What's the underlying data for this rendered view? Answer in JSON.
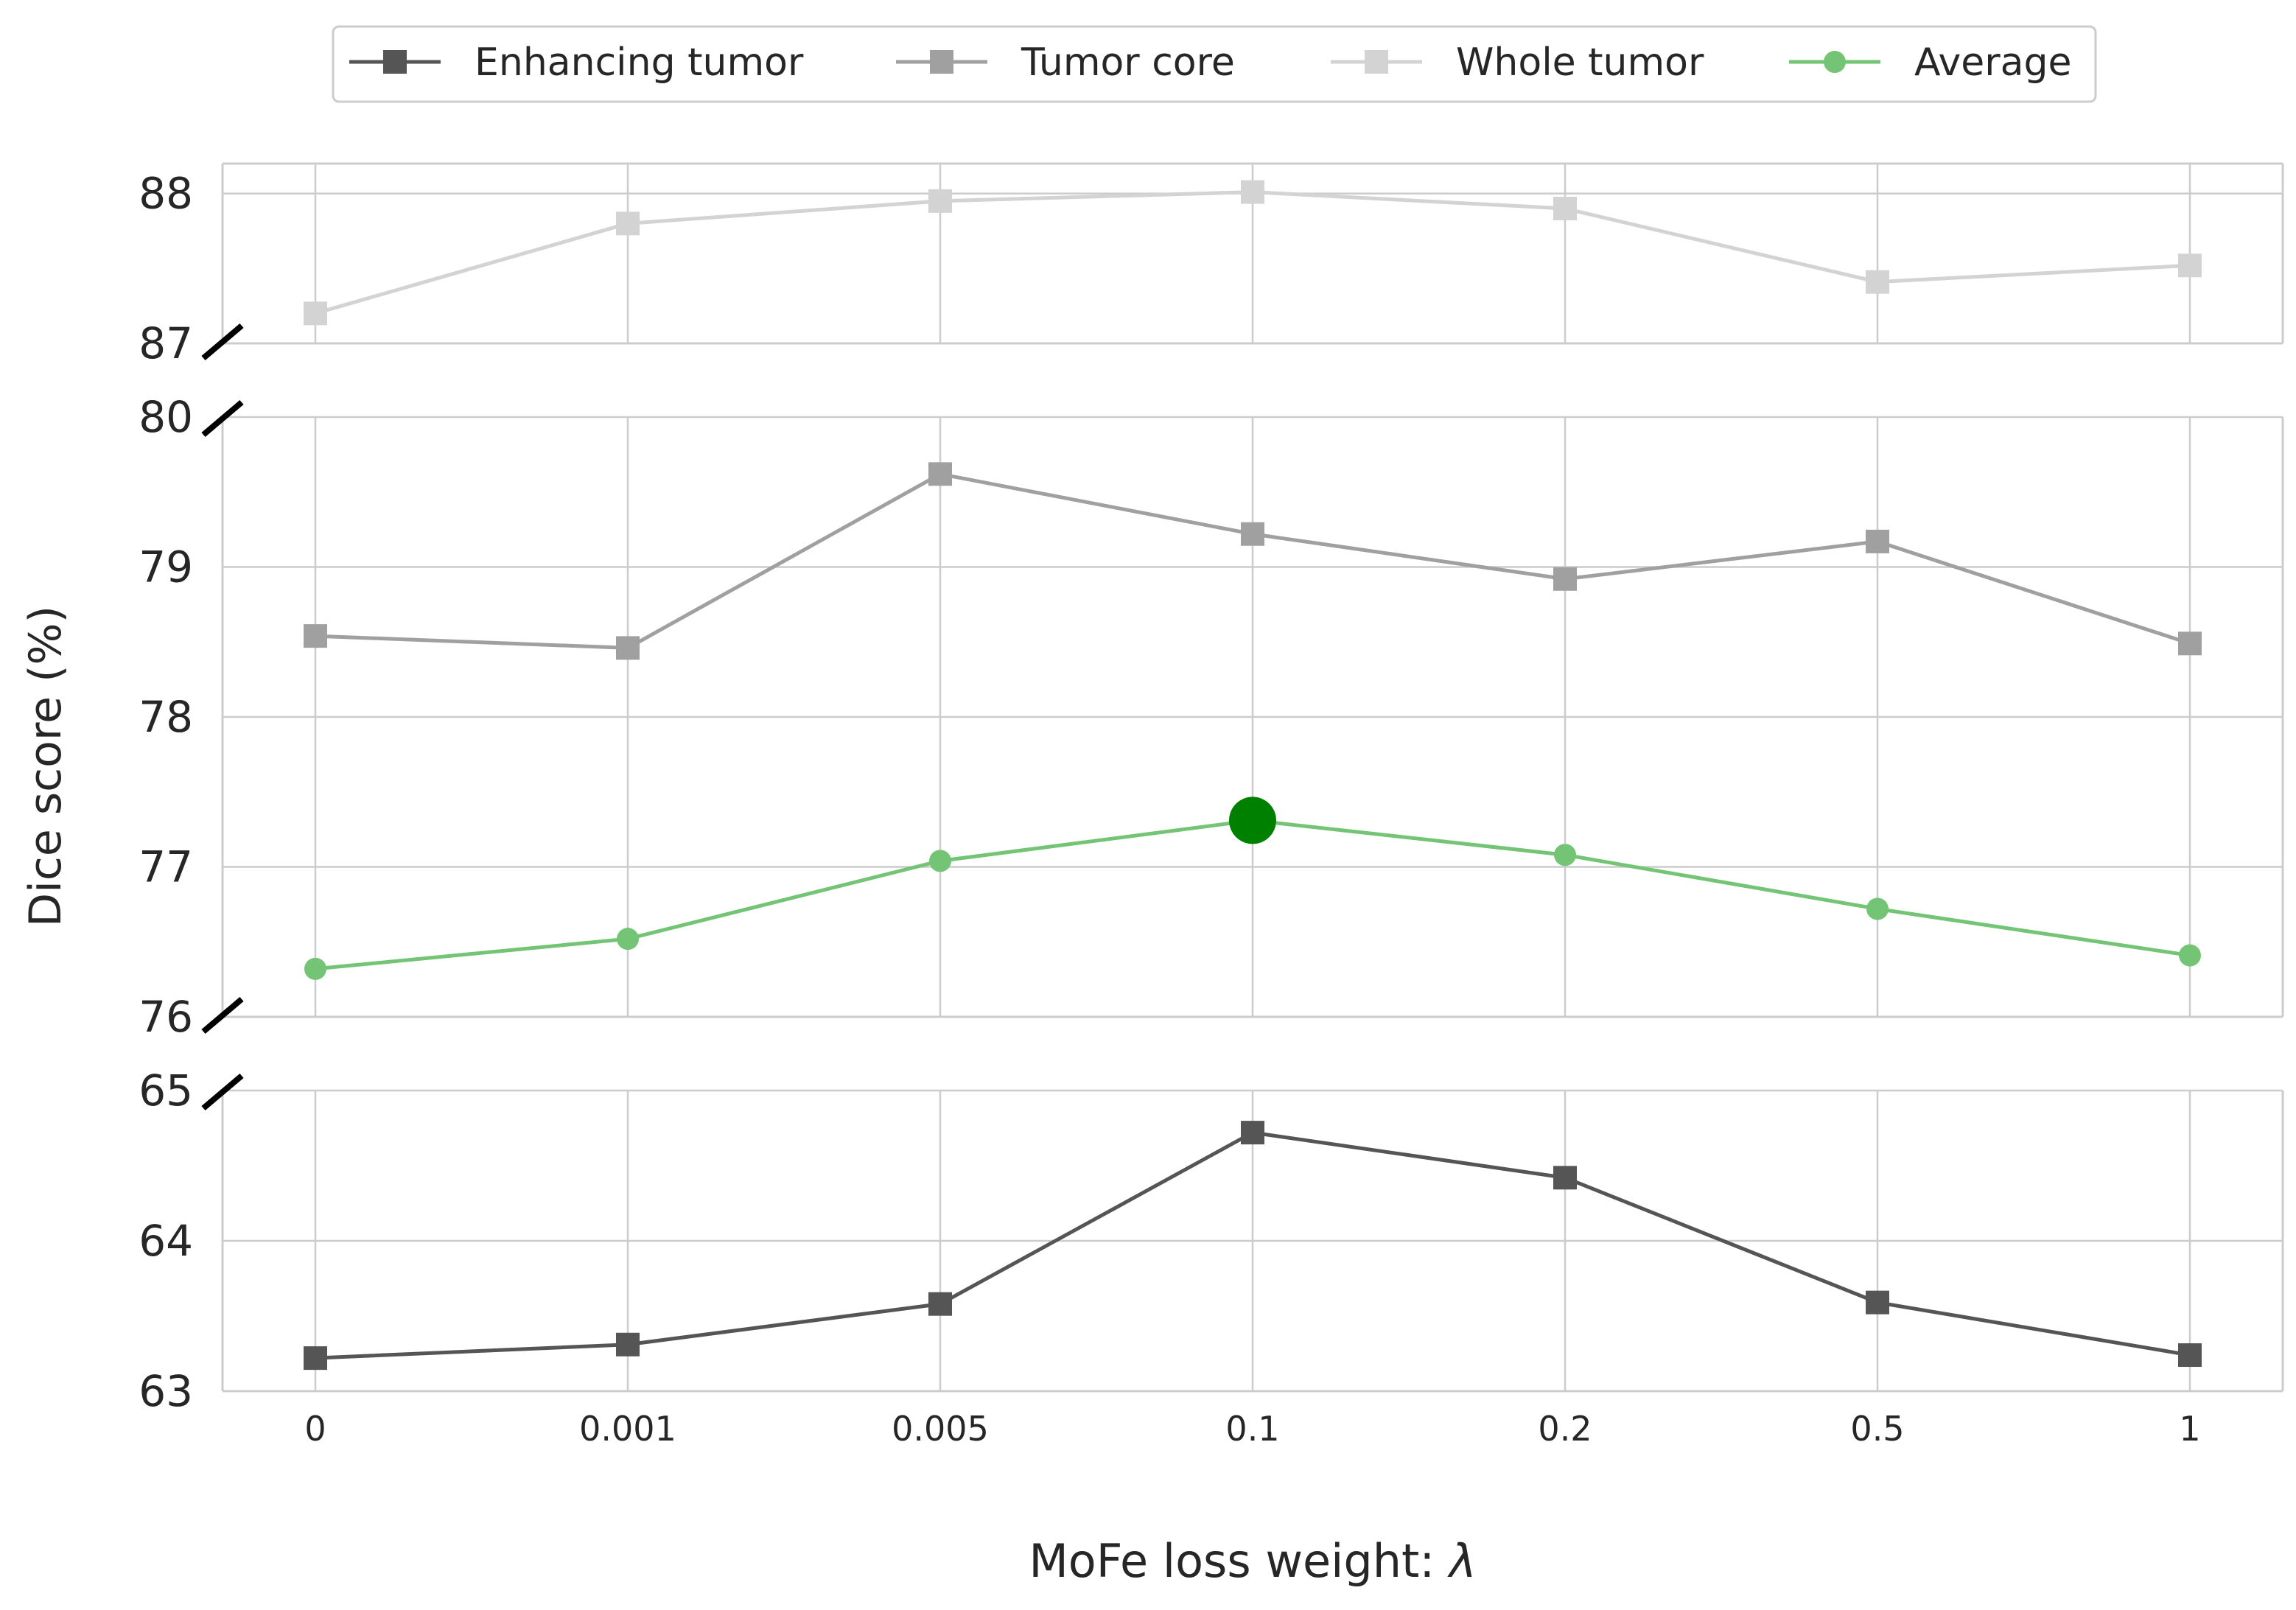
{
  "chart_data": {
    "type": "line",
    "ylabel": "Dice score (%)",
    "xlabel": "MoFe loss weight: ",
    "xlabel_symbol": "λ",
    "x_categories": [
      "0",
      "0.001",
      "0.005",
      "0.1",
      "0.2",
      "0.5",
      "1"
    ],
    "grid": true,
    "legend_placement": "top-center",
    "y_axis_break": true,
    "panels": [
      {
        "id": "top",
        "ylim": [
          87,
          88.2
        ],
        "yticks": [
          "87",
          "88"
        ],
        "series": [
          "Whole tumor"
        ]
      },
      {
        "id": "middle",
        "ylim": [
          76,
          80
        ],
        "yticks": [
          "76",
          "77",
          "78",
          "79",
          "80"
        ],
        "series": [
          "Tumor core",
          "Average"
        ]
      },
      {
        "id": "bottom",
        "ylim": [
          63,
          65
        ],
        "yticks": [
          "63",
          "64",
          "65"
        ],
        "series": [
          "Enhancing tumor"
        ]
      }
    ],
    "series": [
      {
        "name": "Enhancing tumor",
        "color": "#555555",
        "marker": "square",
        "values": [
          63.22,
          63.31,
          63.58,
          64.72,
          64.42,
          63.59,
          63.24
        ]
      },
      {
        "name": "Tumor core",
        "color": "#a0a0a0",
        "marker": "square",
        "values": [
          78.54,
          78.46,
          79.62,
          79.22,
          78.92,
          79.17,
          78.49
        ]
      },
      {
        "name": "Whole tumor",
        "color": "#d3d3d3",
        "marker": "square",
        "values": [
          87.2,
          87.8,
          87.95,
          88.01,
          87.9,
          87.41,
          87.52
        ]
      },
      {
        "name": "Average",
        "color": "#74c476",
        "marker": "circle",
        "values": [
          76.32,
          76.52,
          77.04,
          77.31,
          77.08,
          76.72,
          76.41
        ],
        "highlight": {
          "index": 3,
          "color": "#008000"
        }
      }
    ]
  }
}
